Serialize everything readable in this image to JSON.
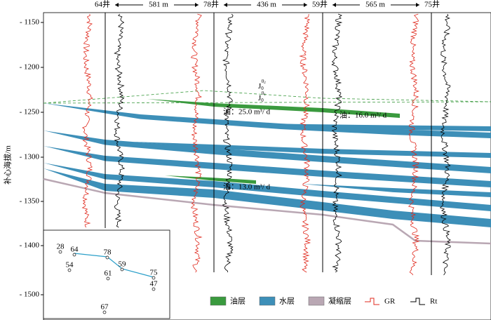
{
  "header": {
    "wells": [
      "64井",
      "78井",
      "59井",
      "75井"
    ],
    "distances": [
      "581 m",
      "436 m",
      "565 m"
    ]
  },
  "y_axis": {
    "label": "补心海拔/m",
    "ticks": [
      "- 1150",
      "- 1200",
      "- 1250",
      "- 1300",
      "- 1350",
      "- 1400",
      "- 1500"
    ]
  },
  "annotations": {
    "horizons": [
      {
        "base": "J",
        "sub": "0",
        "sup": "0",
        "supsub": "2"
      },
      {
        "base": "J",
        "sub": "0",
        "sup": "0",
        "supsub": "1"
      }
    ],
    "oil": [
      "油：25.0 m³/ d",
      "油：16.0 m³/ d",
      "油：13.0 m³/ d"
    ]
  },
  "legend": [
    "油层",
    "水层",
    "凝缩层",
    "GR",
    "Rt"
  ],
  "inset": {
    "points": [
      "28",
      "64",
      "78",
      "54",
      "59",
      "61",
      "75",
      "47",
      "67"
    ]
  }
}
